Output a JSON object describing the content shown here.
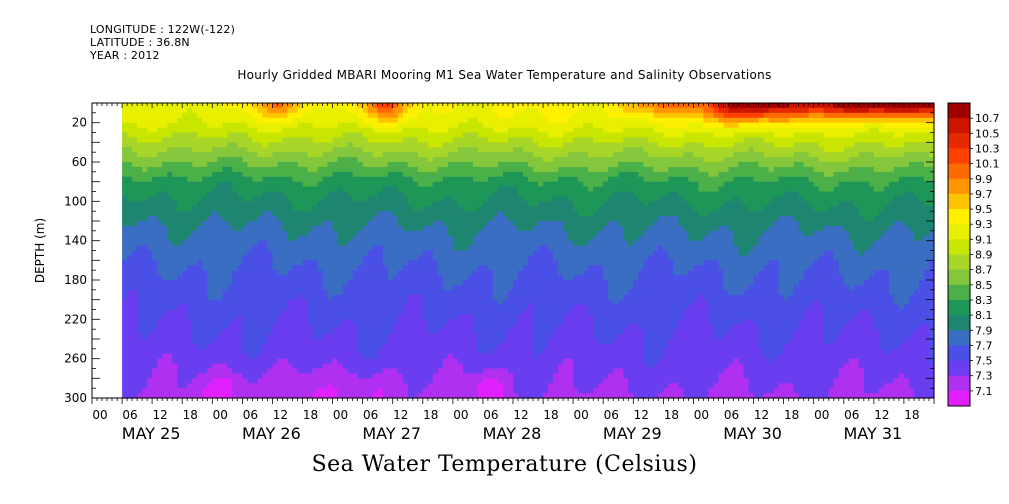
{
  "header": {
    "longitude": "LONGITUDE : 122W(-122)",
    "latitude": "LATITUDE : 36.8N",
    "year": "YEAR : 2012"
  },
  "chart_title": "Hourly Gridded MBARI Mooring M1 Sea Water Temperature and Salinity Observations",
  "footer_title": "Sea Water Temperature (Celsius)",
  "chart_data": {
    "type": "heatmap",
    "title": "Hourly Gridded MBARI Mooring M1 Sea Water Temperature and Salinity Observations",
    "ylabel": "DEPTH (m)",
    "xlabel": "",
    "ylim": [
      300,
      0
    ],
    "y_ticks": [
      20,
      60,
      100,
      140,
      180,
      220,
      260,
      300
    ],
    "x_hour_ticks": [
      "00",
      "06",
      "12",
      "18"
    ],
    "x_day_labels": [
      "MAY 25",
      "MAY 26",
      "MAY 27",
      "MAY 28",
      "MAY 29",
      "MAY 30",
      "MAY 31"
    ],
    "x_range_hours": [
      0,
      168
    ],
    "data_start_hour": 6,
    "colorbar": {
      "labels": [
        "10.7",
        "10.5",
        "10.3",
        "10.1",
        "9.9",
        "9.7",
        "9.5",
        "9.3",
        "9.1",
        "8.9",
        "8.7",
        "8.5",
        "8.3",
        "8.1",
        "7.9",
        "7.7",
        "7.5",
        "7.3",
        "7.1"
      ],
      "colors": [
        "#a00000",
        "#cc1500",
        "#e62a00",
        "#ff4000",
        "#ff6a00",
        "#ff9600",
        "#ffc400",
        "#fff000",
        "#e8f000",
        "#c8e600",
        "#a8d628",
        "#84c63c",
        "#4cb048",
        "#1e9658",
        "#1e8670",
        "#3a6ec2",
        "#4a50e6",
        "#6a3ef0",
        "#b030f0",
        "#e020ff"
      ]
    },
    "depth_profile": [
      {
        "depth": 5,
        "temp": 9.3
      },
      {
        "depth": 20,
        "temp": 9.2
      },
      {
        "depth": 40,
        "temp": 8.9
      },
      {
        "depth": 60,
        "temp": 8.6
      },
      {
        "depth": 80,
        "temp": 8.3
      },
      {
        "depth": 100,
        "temp": 8.15
      },
      {
        "depth": 130,
        "temp": 7.95
      },
      {
        "depth": 170,
        "temp": 7.78
      },
      {
        "depth": 220,
        "temp": 7.62
      },
      {
        "depth": 260,
        "temp": 7.5
      },
      {
        "depth": 290,
        "temp": 7.4
      },
      {
        "depth": 300,
        "temp": 7.35
      }
    ],
    "warm_events": [
      {
        "hour": 37,
        "width": 6,
        "depth": 15,
        "delta": 0.6
      },
      {
        "hour": 58,
        "width": 5,
        "depth": 18,
        "delta": 0.8
      },
      {
        "hour": 112,
        "width": 6,
        "depth": 14,
        "delta": 0.5
      },
      {
        "hour": 130,
        "width": 9,
        "depth": 18,
        "delta": 1.3
      },
      {
        "hour": 158,
        "width": 22,
        "depth": 14,
        "delta": 1.6
      }
    ],
    "cold_spots": [
      {
        "hour": 27,
        "width": 5,
        "depth": 290,
        "delta": -0.3
      },
      {
        "hour": 40,
        "width": 5,
        "depth": 290,
        "delta": -0.2
      },
      {
        "hour": 55,
        "width": 8,
        "depth": 290,
        "delta": -0.2
      },
      {
        "hour": 79,
        "width": 4,
        "depth": 290,
        "delta": -0.3
      }
    ]
  }
}
